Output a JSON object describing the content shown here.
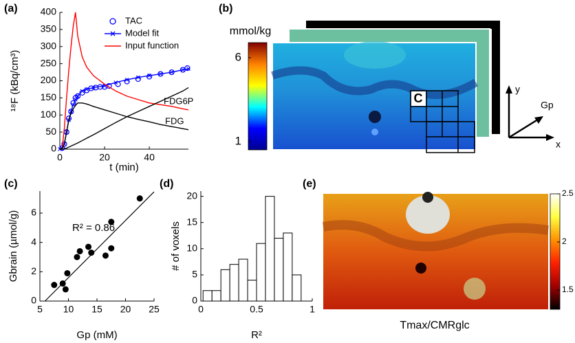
{
  "chart_data": [
    {
      "type": "line",
      "panel_label": "(a)",
      "xlabel": "t (min)",
      "ylabel": "¹⁸F (kBq/cm³)",
      "xlim": [
        0,
        57.5
      ],
      "ylim": [
        0,
        400
      ],
      "xticks": [
        0,
        20,
        40
      ],
      "yticks": [
        0,
        50,
        100,
        150,
        200,
        250,
        300,
        350,
        400
      ],
      "series": [
        {
          "name": "TAC",
          "color": "#0000ff",
          "style": "circles",
          "in_legend": true,
          "x": [
            1,
            2,
            3,
            4,
            5,
            6,
            7,
            8,
            10,
            12,
            14,
            16,
            18,
            20,
            22,
            26,
            30,
            35,
            40,
            45,
            50,
            55,
            57
          ],
          "values": [
            3,
            15,
            50,
            90,
            110,
            135,
            150,
            155,
            165,
            172,
            178,
            180,
            182,
            182,
            185,
            190,
            198,
            205,
            212,
            220,
            225,
            232,
            237
          ]
        },
        {
          "name": "Model fit",
          "color": "#0000ff",
          "style": "line-x",
          "in_legend": true,
          "x": [
            0,
            1,
            2,
            3,
            4,
            5,
            6,
            7,
            8,
            10,
            12,
            15,
            20,
            25,
            30,
            35,
            40,
            45,
            50,
            55,
            57.5
          ],
          "values": [
            0,
            2,
            15,
            50,
            85,
            110,
            130,
            145,
            155,
            170,
            175,
            180,
            185,
            195,
            203,
            210,
            215,
            220,
            225,
            232,
            235
          ]
        },
        {
          "name": "Input function",
          "color": "#ff0000",
          "style": "line",
          "in_legend": true,
          "x": [
            0,
            1,
            2,
            3,
            4,
            5,
            6,
            7,
            8,
            10,
            12,
            15,
            20,
            25,
            30,
            35,
            40,
            45,
            50,
            55,
            57.5
          ],
          "values": [
            0,
            0,
            60,
            150,
            230,
            300,
            360,
            400,
            330,
            270,
            240,
            215,
            190,
            170,
            155,
            145,
            135,
            130,
            125,
            118,
            115
          ]
        },
        {
          "name": "FDG6P",
          "color": "#000000",
          "style": "line",
          "in_legend": false,
          "x": [
            0,
            1,
            2,
            3,
            4,
            5,
            6,
            7,
            8,
            10,
            12,
            15,
            20,
            25,
            30,
            35,
            40,
            45,
            50,
            55,
            57.5
          ],
          "values": [
            0,
            0,
            1,
            3,
            6,
            9,
            12,
            15,
            18,
            25,
            32,
            42,
            60,
            78,
            95,
            110,
            125,
            140,
            155,
            170,
            180
          ]
        },
        {
          "name": "FDG",
          "color": "#000000",
          "style": "line",
          "in_legend": false,
          "x": [
            0,
            1,
            2,
            3,
            4,
            5,
            6,
            7,
            8,
            10,
            12,
            15,
            20,
            25,
            30,
            35,
            40,
            45,
            50,
            55,
            57.5
          ],
          "values": [
            0,
            2,
            15,
            50,
            85,
            105,
            118,
            128,
            135,
            135,
            132,
            125,
            115,
            105,
            95,
            87,
            80,
            72,
            66,
            60,
            57
          ]
        }
      ]
    },
    {
      "type": "image",
      "panel_label": "(b)",
      "colorbar_label": "mmol/kg",
      "clim": [
        0.5,
        6.9
      ],
      "cticks": [
        1,
        6
      ],
      "colormap": [
        "#00008f",
        "#0000ff",
        "#00ffff",
        "#ffff00",
        "#ff8000",
        "#800000"
      ],
      "roi_label": "C",
      "axis_labels": [
        "y",
        "Gp",
        "x"
      ]
    },
    {
      "type": "scatter",
      "panel_label": "(c)",
      "xlabel": "Gp (mM)",
      "ylabel": "Gbrain (µmol/g)",
      "annotation": "R² = 0.86",
      "xlim": [
        5,
        25
      ],
      "ylim": [
        0,
        7.5
      ],
      "xticks": [
        5,
        10,
        15,
        20,
        25
      ],
      "yticks": [
        0,
        2,
        4,
        6
      ],
      "color": "#000000",
      "x": [
        7.5,
        9,
        9.5,
        9.8,
        11.5,
        12,
        13.5,
        14,
        16.5,
        17.5,
        17.5,
        22.5
      ],
      "values": [
        1.1,
        1.2,
        0.8,
        1.9,
        3.0,
        3.4,
        3.7,
        3.3,
        3.1,
        3.6,
        5.4,
        7.0
      ],
      "fit": {
        "slope": 0.39,
        "intercept": -2.3
      }
    },
    {
      "type": "histogram",
      "panel_label": "(d)",
      "xlabel": "R²",
      "ylabel": "# of voxels",
      "xlim": [
        0,
        1
      ],
      "ylim": [
        0,
        21
      ],
      "xticks": [
        0,
        0.5,
        1
      ],
      "yticks": [
        0,
        5,
        10,
        15,
        20
      ],
      "color": "#ffffff",
      "bins": [
        0.02,
        0.1,
        0.18,
        0.26,
        0.34,
        0.42,
        0.5,
        0.58,
        0.66,
        0.74,
        0.82,
        0.9
      ],
      "values": [
        2,
        2,
        6,
        7,
        8,
        4,
        11,
        20,
        12,
        13,
        5
      ]
    },
    {
      "type": "image",
      "panel_label": "(e)",
      "image_label": "Tmax/CMRglc",
      "clim": [
        1.3,
        2.5
      ],
      "cticks": [
        1.5,
        2,
        2.5
      ],
      "colormap": [
        "#000000",
        "#a00000",
        "#ff2000",
        "#ff9000",
        "#ffff40",
        "#ffffff"
      ]
    }
  ]
}
